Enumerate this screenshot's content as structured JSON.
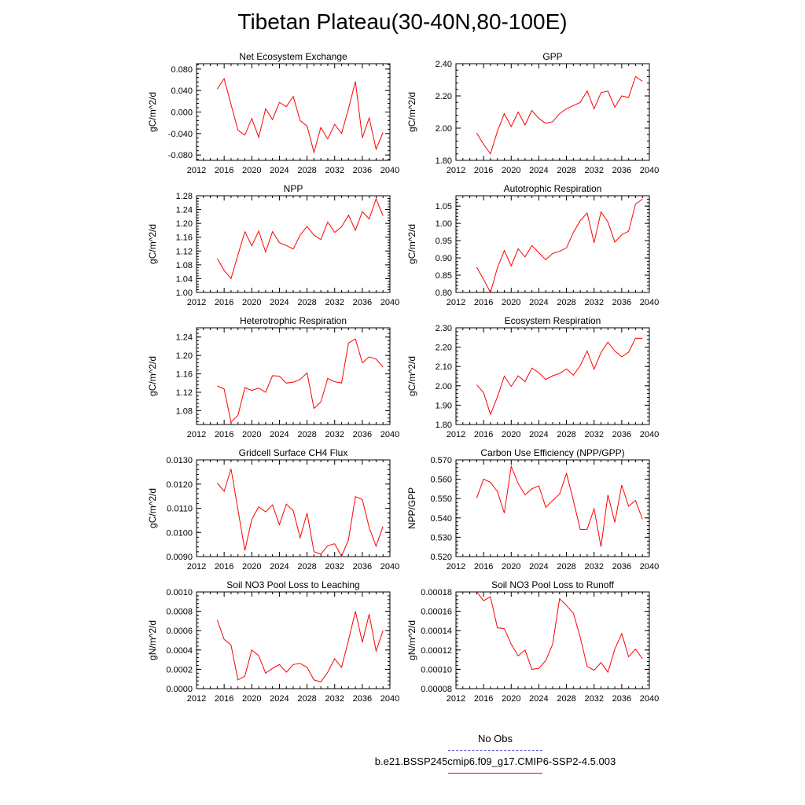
{
  "title": "Tibetan Plateau(30-40N,80-100E)",
  "colors": {
    "model": "#ff0000",
    "obs": "#5555cc",
    "axis": "#000000"
  },
  "chart_data": [
    {
      "type": "line",
      "title": "Net Ecosystem Exchange",
      "ylabel": "gC/m^2/d",
      "xlim": [
        2012,
        2040
      ],
      "ylim": [
        -0.09,
        0.09
      ],
      "xticks": [
        "2012",
        "2016",
        "2020",
        "2024",
        "2028",
        "2032",
        "2036",
        "2040"
      ],
      "yticks": [
        "-0.080",
        "-0.040",
        "0.000",
        "0.040",
        "0.080"
      ],
      "x": [
        2015,
        2016,
        2017,
        2018,
        2019,
        2020,
        2021,
        2022,
        2023,
        2024,
        2025,
        2026,
        2027,
        2028,
        2029,
        2030,
        2031,
        2032,
        2033,
        2034,
        2035,
        2036,
        2037,
        2038,
        2039
      ],
      "values": [
        0.043,
        0.062,
        0.014,
        -0.034,
        -0.043,
        -0.012,
        -0.047,
        0.006,
        -0.014,
        0.018,
        0.01,
        0.029,
        -0.016,
        -0.026,
        -0.075,
        -0.029,
        -0.05,
        -0.023,
        -0.04,
        0.006,
        0.057,
        -0.048,
        -0.011,
        -0.069,
        -0.038
      ]
    },
    {
      "type": "line",
      "title": "GPP",
      "ylabel": "gC/m^2/d",
      "xlim": [
        2012,
        2040
      ],
      "ylim": [
        1.8,
        2.4
      ],
      "xticks": [
        "2012",
        "2016",
        "2020",
        "2024",
        "2028",
        "2032",
        "2036",
        "2040"
      ],
      "yticks": [
        "1.80",
        "2.00",
        "2.20",
        "2.40"
      ],
      "x": [
        2015,
        2016,
        2017,
        2018,
        2019,
        2020,
        2021,
        2022,
        2023,
        2024,
        2025,
        2026,
        2027,
        2028,
        2029,
        2030,
        2031,
        2032,
        2033,
        2034,
        2035,
        2036,
        2037,
        2038,
        2039
      ],
      "values": [
        1.97,
        1.9,
        1.84,
        1.98,
        2.09,
        2.01,
        2.1,
        2.02,
        2.11,
        2.06,
        2.03,
        2.04,
        2.09,
        2.12,
        2.14,
        2.16,
        2.23,
        2.12,
        2.22,
        2.23,
        2.13,
        2.2,
        2.19,
        2.32,
        2.29
      ]
    },
    {
      "type": "line",
      "title": "NPP",
      "ylabel": "gC/m^2/d",
      "xlim": [
        2012,
        2040
      ],
      "ylim": [
        1.0,
        1.28
      ],
      "xticks": [
        "2012",
        "2016",
        "2020",
        "2024",
        "2028",
        "2032",
        "2036",
        "2040"
      ],
      "yticks": [
        "1.00",
        "1.04",
        "1.08",
        "1.12",
        "1.16",
        "1.20",
        "1.24",
        "1.28"
      ],
      "x": [
        2015,
        2016,
        2017,
        2018,
        2019,
        2020,
        2021,
        2022,
        2023,
        2024,
        2025,
        2026,
        2027,
        2028,
        2029,
        2030,
        2031,
        2032,
        2033,
        2034,
        2035,
        2036,
        2037,
        2038,
        2039
      ],
      "values": [
        1.098,
        1.064,
        1.04,
        1.109,
        1.176,
        1.135,
        1.178,
        1.117,
        1.176,
        1.144,
        1.136,
        1.126,
        1.166,
        1.191,
        1.166,
        1.153,
        1.204,
        1.174,
        1.19,
        1.224,
        1.18,
        1.234,
        1.213,
        1.271,
        1.222
      ]
    },
    {
      "type": "line",
      "title": "Autotrophic Respiration",
      "ylabel": "gC/m^2/d",
      "xlim": [
        2012,
        2040
      ],
      "ylim": [
        0.8,
        1.08
      ],
      "xticks": [
        "2012",
        "2016",
        "2020",
        "2024",
        "2028",
        "2032",
        "2036",
        "2040"
      ],
      "yticks": [
        "0.80",
        "0.85",
        "0.90",
        "0.95",
        "1.00",
        "1.05"
      ],
      "x": [
        2015,
        2016,
        2017,
        2018,
        2019,
        2020,
        2021,
        2022,
        2023,
        2024,
        2025,
        2026,
        2027,
        2028,
        2029,
        2030,
        2031,
        2032,
        2033,
        2034,
        2035,
        2036,
        2037,
        2038,
        2039
      ],
      "values": [
        0.873,
        0.838,
        0.8,
        0.871,
        0.921,
        0.877,
        0.926,
        0.903,
        0.936,
        0.915,
        0.895,
        0.913,
        0.919,
        0.929,
        0.974,
        1.008,
        1.03,
        0.944,
        1.033,
        1.004,
        0.946,
        0.967,
        0.977,
        1.056,
        1.07
      ]
    },
    {
      "type": "line",
      "title": "Heterotrophic Respiration",
      "ylabel": "gC/m^2/d",
      "xlim": [
        2012,
        2040
      ],
      "ylim": [
        1.05,
        1.26
      ],
      "xticks": [
        "2012",
        "2016",
        "2020",
        "2024",
        "2028",
        "2032",
        "2036",
        "2040"
      ],
      "yticks": [
        "1.08",
        "1.12",
        "1.16",
        "1.20",
        "1.24"
      ],
      "x": [
        2015,
        2016,
        2017,
        2018,
        2019,
        2020,
        2021,
        2022,
        2023,
        2024,
        2025,
        2026,
        2027,
        2028,
        2029,
        2030,
        2031,
        2032,
        2033,
        2034,
        2035,
        2036,
        2037,
        2038,
        2039
      ],
      "values": [
        1.134,
        1.127,
        1.055,
        1.07,
        1.13,
        1.124,
        1.129,
        1.12,
        1.156,
        1.155,
        1.14,
        1.142,
        1.148,
        1.162,
        1.085,
        1.099,
        1.15,
        1.143,
        1.14,
        1.227,
        1.236,
        1.184,
        1.197,
        1.192,
        1.175
      ]
    },
    {
      "type": "line",
      "title": "Ecosystem Respiration",
      "ylabel": "gC/m^2/d",
      "xlim": [
        2012,
        2040
      ],
      "ylim": [
        1.8,
        2.3
      ],
      "xticks": [
        "2012",
        "2016",
        "2020",
        "2024",
        "2028",
        "2032",
        "2036",
        "2040"
      ],
      "yticks": [
        "1.80",
        "1.90",
        "2.00",
        "2.10",
        "2.20",
        "2.30"
      ],
      "x": [
        2015,
        2016,
        2017,
        2018,
        2019,
        2020,
        2021,
        2022,
        2023,
        2024,
        2025,
        2026,
        2027,
        2028,
        2029,
        2030,
        2031,
        2032,
        2033,
        2034,
        2035,
        2036,
        2037,
        2038,
        2039
      ],
      "values": [
        2.005,
        1.965,
        1.853,
        1.942,
        2.05,
        1.997,
        2.052,
        2.022,
        2.092,
        2.068,
        2.033,
        2.052,
        2.064,
        2.088,
        2.055,
        2.105,
        2.18,
        2.086,
        2.172,
        2.226,
        2.18,
        2.15,
        2.174,
        2.246,
        2.245
      ]
    },
    {
      "type": "line",
      "title": "Gridcell Surface CH4 Flux",
      "ylabel": "gC/m^2/d",
      "xlim": [
        2012,
        2040
      ],
      "ylim": [
        0.009,
        0.013
      ],
      "xticks": [
        "2012",
        "2016",
        "2020",
        "2024",
        "2028",
        "2032",
        "2036",
        "2040"
      ],
      "yticks": [
        "0.0090",
        "0.0100",
        "0.0110",
        "0.0120",
        "0.0130"
      ],
      "x": [
        2015,
        2016,
        2017,
        2018,
        2019,
        2020,
        2021,
        2022,
        2023,
        2024,
        2025,
        2026,
        2027,
        2028,
        2029,
        2030,
        2031,
        2032,
        2033,
        2034,
        2035,
        2036,
        2037,
        2038,
        2039
      ],
      "values": [
        0.01204,
        0.0117,
        0.01263,
        0.01094,
        0.00925,
        0.01054,
        0.01106,
        0.01085,
        0.01114,
        0.01032,
        0.01117,
        0.0109,
        0.00978,
        0.0108,
        0.0092,
        0.0091,
        0.00945,
        0.00953,
        0.00901,
        0.0097,
        0.01148,
        0.01136,
        0.0102,
        0.00943,
        0.01025
      ]
    },
    {
      "type": "line",
      "title": "Carbon Use Efficiency (NPP/GPP)",
      "ylabel": "NPP/GPP",
      "xlim": [
        2012,
        2040
      ],
      "ylim": [
        0.52,
        0.57
      ],
      "xticks": [
        "2012",
        "2016",
        "2020",
        "2024",
        "2028",
        "2032",
        "2036",
        "2040"
      ],
      "yticks": [
        "0.520",
        "0.530",
        "0.540",
        "0.550",
        "0.560",
        "0.570"
      ],
      "x": [
        2015,
        2016,
        2017,
        2018,
        2019,
        2020,
        2021,
        2022,
        2023,
        2024,
        2025,
        2026,
        2027,
        2028,
        2029,
        2030,
        2031,
        2032,
        2033,
        2034,
        2035,
        2036,
        2037,
        2038,
        2039
      ],
      "values": [
        0.5502,
        0.5601,
        0.5584,
        0.5536,
        0.5425,
        0.5667,
        0.5578,
        0.5519,
        0.5551,
        0.5566,
        0.5455,
        0.549,
        0.5523,
        0.563,
        0.549,
        0.534,
        0.5341,
        0.5447,
        0.5251,
        0.5519,
        0.5377,
        0.557,
        0.546,
        0.549,
        0.5393
      ]
    },
    {
      "type": "line",
      "title": "Soil NO3 Pool Loss to Leaching",
      "ylabel": "gN/m^2/d",
      "xlim": [
        2012,
        2040
      ],
      "ylim": [
        0.0,
        0.001
      ],
      "xticks": [
        "2012",
        "2016",
        "2020",
        "2024",
        "2028",
        "2032",
        "2036",
        "2040"
      ],
      "yticks": [
        "0.0000",
        "0.0002",
        "0.0004",
        "0.0006",
        "0.0008",
        "0.0010"
      ],
      "x": [
        2015,
        2016,
        2017,
        2018,
        2019,
        2020,
        2021,
        2022,
        2023,
        2024,
        2025,
        2026,
        2027,
        2028,
        2029,
        2030,
        2031,
        2032,
        2033,
        2034,
        2035,
        2036,
        2037,
        2038,
        2039
      ],
      "values": [
        0.00071,
        0.00051,
        0.00045,
        9e-05,
        0.00013,
        0.0004,
        0.00034,
        0.00016,
        0.00021,
        0.00025,
        0.00017,
        0.00025,
        0.00026,
        0.00022,
        9e-05,
        7e-05,
        0.00017,
        0.00031,
        0.00022,
        0.0005,
        0.0008,
        0.00048,
        0.00077,
        0.00039,
        0.0006
      ]
    },
    {
      "type": "line",
      "title": "Soil NO3 Pool Loss to Runoff",
      "ylabel": "gN/m^2/d",
      "xlim": [
        2012,
        2040
      ],
      "ylim": [
        8e-05,
        0.00018
      ],
      "xticks": [
        "2012",
        "2016",
        "2020",
        "2024",
        "2028",
        "2032",
        "2036",
        "2040"
      ],
      "yticks": [
        "0.00008",
        "0.00010",
        "0.00012",
        "0.00014",
        "0.00016",
        "0.00018"
      ],
      "x": [
        2015,
        2016,
        2017,
        2018,
        2019,
        2020,
        2021,
        2022,
        2023,
        2024,
        2025,
        2026,
        2027,
        2028,
        2029,
        2030,
        2031,
        2032,
        2033,
        2034,
        2035,
        2036,
        2037,
        2038,
        2039
      ],
      "values": [
        0.00018,
        0.000171,
        0.000175,
        0.000143,
        0.000142,
        0.000126,
        0.000114,
        0.00012,
        0.0001,
        0.000101,
        0.000109,
        0.000126,
        0.000173,
        0.000166,
        0.000158,
        0.000133,
        0.000103,
        9.9e-05,
        0.000107,
        9.7e-05,
        0.000121,
        0.000137,
        0.000113,
        0.000121,
        0.000111
      ]
    }
  ],
  "legend": {
    "obs_label": "No Obs",
    "model_label": "b.e21.BSSP245cmip6.f09_g17.CMIP6-SSP2-4.5.003"
  }
}
